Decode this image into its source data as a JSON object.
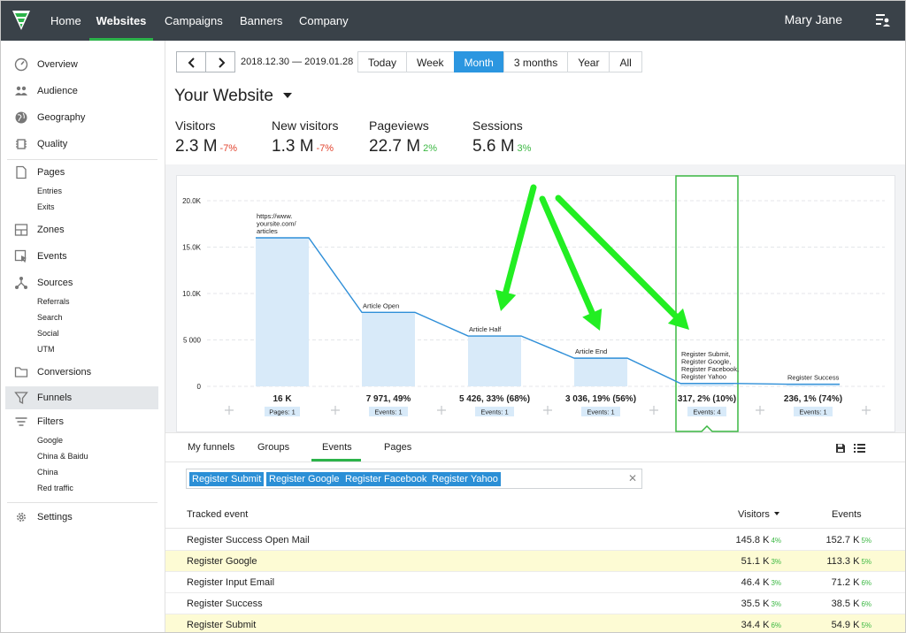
{
  "nav": {
    "items": [
      "Home",
      "Websites",
      "Campaigns",
      "Banners",
      "Company"
    ],
    "active": "Websites",
    "user_name": "Mary Jane"
  },
  "sidebar": {
    "overview": "Overview",
    "audience": "Audience",
    "geography": "Geography",
    "quality": "Quality",
    "pages": "Pages",
    "pages_sub": [
      "Entries",
      "Exits"
    ],
    "zones": "Zones",
    "events": "Events",
    "sources": "Sources",
    "sources_sub": [
      "Referrals",
      "Search",
      "Social",
      "UTM"
    ],
    "conversions": "Conversions",
    "funnels": "Funnels",
    "filters": "Filters",
    "filters_sub": [
      "Google",
      "China & Baidu",
      "China",
      "Red traffic"
    ],
    "settings": "Settings"
  },
  "date": {
    "range": "2018.12.30  — 2019.01.28",
    "buttons": [
      "Today",
      "Week",
      "Month",
      "3 months",
      "Year",
      "All"
    ],
    "active": "Month"
  },
  "site": {
    "title": "Your Website"
  },
  "metrics": [
    {
      "label": "Visitors",
      "value": "2.3 M",
      "change": "-7%",
      "trend": "neg"
    },
    {
      "label": "New visitors",
      "value": "1.3 M",
      "change": "-7%",
      "trend": "neg"
    },
    {
      "label": "Pageviews",
      "value": "22.7 M",
      "change": "2%",
      "trend": "pos"
    },
    {
      "label": "Sessions",
      "value": "5.6 M",
      "change": "3%",
      "trend": "pos"
    }
  ],
  "chart_data": {
    "type": "bar",
    "ylim": [
      0,
      20000
    ],
    "yticks": [
      0,
      5000,
      10000,
      15000,
      20000
    ],
    "ytick_labels": [
      "0",
      "5 000",
      "10.0K",
      "15.0K",
      "20.0K"
    ],
    "steps": [
      {
        "name_lines": [
          "https://www.",
          "yoursite.com/",
          "articles"
        ],
        "value": 16000,
        "summary": "16 K",
        "badge": "Pages: 1"
      },
      {
        "name_lines": [
          "Article Open"
        ],
        "value": 7971,
        "summary": "7 971, 49%",
        "badge": "Events: 1"
      },
      {
        "name_lines": [
          "Article Half"
        ],
        "value": 5426,
        "summary": "5 426, 33% (68%)",
        "badge": "Events: 1"
      },
      {
        "name_lines": [
          "Article End"
        ],
        "value": 3036,
        "summary": "3 036, 19% (56%)",
        "badge": "Events: 1"
      },
      {
        "name_lines": [
          "Register Submit,",
          "Register Google,",
          "Register Facebook,",
          "Register Yahoo"
        ],
        "value": 317,
        "summary": "317, 2% (10%)",
        "badge": "Events: 4",
        "selected": true
      },
      {
        "name_lines": [
          "Register Success"
        ],
        "value": 236,
        "summary": "236, 1% (74%)",
        "badge": "Events: 1"
      }
    ],
    "bar_color": "#d8eaf9",
    "line_color": "#2f8fd8",
    "highlight_color": "#3cb843",
    "arrow_color": "#22ee22"
  },
  "tabs": {
    "items": [
      "My funnels",
      "Groups",
      "Events",
      "Pages"
    ],
    "active": "Events"
  },
  "tags": [
    "Register Submit",
    "Register Google",
    "Register Facebook",
    "Register Yahoo"
  ],
  "table": {
    "headers": {
      "event": "Tracked event",
      "visitors": "Visitors",
      "events": "Events"
    },
    "rows": [
      {
        "name": "Register Success Open Mail",
        "visitors": "145.8 K",
        "visitors_pct": "4%",
        "events": "152.7 K",
        "events_pct": "5%",
        "highlight": false
      },
      {
        "name": "Register Google",
        "visitors": "51.1 K",
        "visitors_pct": "3%",
        "events": "113.3 K",
        "events_pct": "5%",
        "highlight": true
      },
      {
        "name": "Register Input Email",
        "visitors": "46.4 K",
        "visitors_pct": "3%",
        "events": "71.2 K",
        "events_pct": "6%",
        "highlight": false
      },
      {
        "name": "Register Success",
        "visitors": "35.5 K",
        "visitors_pct": "3%",
        "events": "38.5 K",
        "events_pct": "6%",
        "highlight": false
      },
      {
        "name": "Register Submit",
        "visitors": "34.4 K",
        "visitors_pct": "6%",
        "events": "54.9 K",
        "events_pct": "5%",
        "highlight": true
      }
    ]
  }
}
